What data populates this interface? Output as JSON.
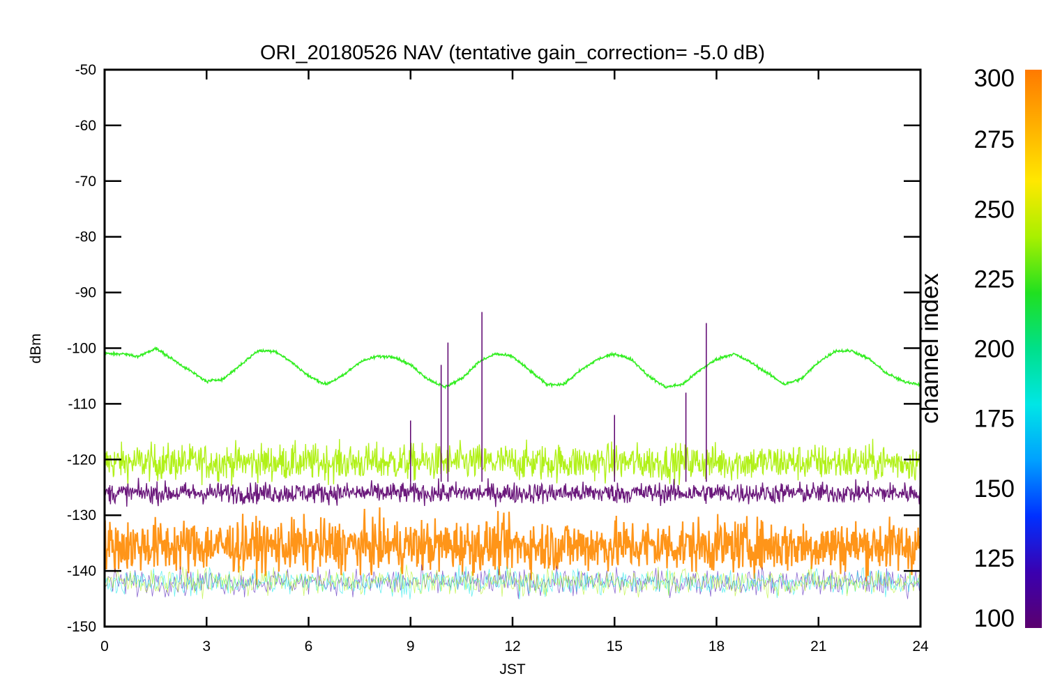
{
  "chart_data": {
    "type": "line",
    "title": "ORI_20180526 NAV (tentative gain_correction= -5.0 dB)",
    "xlabel": "JST",
    "ylabel": "dBm",
    "xlim": [
      0,
      24
    ],
    "ylim": [
      -150,
      -50
    ],
    "xticks": [
      0,
      3,
      6,
      9,
      12,
      15,
      18,
      21,
      24
    ],
    "yticks": [
      -50,
      -60,
      -70,
      -80,
      -90,
      -100,
      -110,
      -120,
      -130,
      -140,
      -150
    ],
    "grid": false,
    "colorbar": {
      "label": "channel index",
      "range": [
        100,
        300
      ],
      "ticks": [
        300,
        275,
        250,
        225,
        200,
        175,
        150,
        125,
        100
      ],
      "colormap": "rainbow",
      "colors": [
        "#5b006e",
        "#3a00b0",
        "#0030ff",
        "#00a0ff",
        "#00e6e6",
        "#00e08a",
        "#20e020",
        "#a8f000",
        "#ffe800",
        "#ffb000",
        "#ff7a00"
      ]
    },
    "series": [
      {
        "channel_index": 243,
        "color": "#33ee22",
        "description_points_x": [
          0,
          0.5,
          1,
          1.5,
          2,
          2.5,
          3,
          3.5,
          4,
          4.5,
          5,
          5.5,
          6,
          6.5,
          7,
          7.5,
          8,
          8.5,
          9,
          9.5,
          10,
          10.5,
          11,
          11.5,
          12,
          12.5,
          13,
          13.5,
          14,
          14.5,
          15,
          15.5,
          16,
          16.5,
          17,
          17.5,
          18,
          18.5,
          19,
          19.5,
          20,
          20.5,
          21,
          21.5,
          22,
          22.5,
          23,
          23.5,
          24
        ],
        "values": [
          -101,
          -101,
          -101.5,
          -100,
          -102,
          -104,
          -106,
          -105.5,
          -103,
          -100.5,
          -100.5,
          -102.5,
          -105,
          -106.5,
          -105,
          -102.5,
          -101.5,
          -101.5,
          -103,
          -105.5,
          -107,
          -105.5,
          -102.5,
          -101,
          -101.5,
          -104,
          -106.5,
          -106.5,
          -104,
          -102,
          -101,
          -102,
          -105,
          -107,
          -106.5,
          -104,
          -102,
          -101,
          -102.5,
          -104.5,
          -106.5,
          -105.5,
          -102.5,
          -100.5,
          -100.5,
          -102,
          -104.5,
          -106,
          -106.5
        ]
      },
      {
        "channel_index": 260,
        "color": "#a8f000",
        "band_center": -120.5,
        "band_spread": 3.5
      },
      {
        "channel_index": 100,
        "color": "#5b006e",
        "band_center": -126,
        "band_spread": 2
      },
      {
        "channel_index": 290,
        "color": "#ff8a00",
        "band_center": -135.5,
        "band_spread": 5
      }
    ],
    "spikes": [
      {
        "x": 9.9,
        "y": -103,
        "channel_index": 100
      },
      {
        "x": 10.1,
        "y": -99,
        "channel_index": 100
      },
      {
        "x": 11.1,
        "y": -93.5,
        "channel_index": 100
      },
      {
        "x": 17.7,
        "y": -95.5,
        "channel_index": 100
      },
      {
        "x": 17.1,
        "y": -108,
        "channel_index": 100
      },
      {
        "x": 9.0,
        "y": -113,
        "channel_index": 100
      },
      {
        "x": 15.0,
        "y": -112,
        "channel_index": 100
      }
    ]
  }
}
